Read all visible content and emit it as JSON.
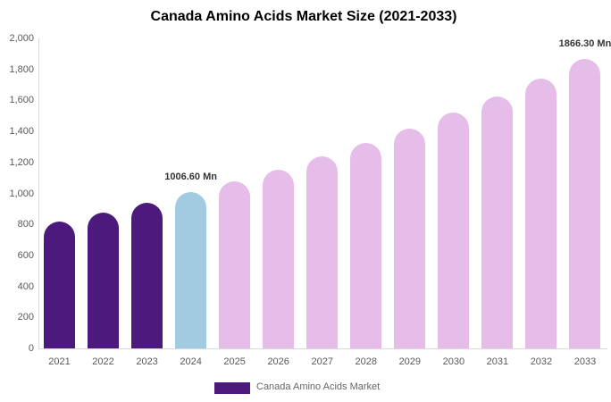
{
  "chart_data": {
    "type": "bar",
    "title": "Canada Amino Acids Market Size (2021-2033)",
    "categories": [
      "2021",
      "2022",
      "2023",
      "2024",
      "2025",
      "2026",
      "2027",
      "2028",
      "2029",
      "2030",
      "2031",
      "2032",
      "2033"
    ],
    "series": [
      {
        "name": "Canada Amino Acids Market",
        "values": [
          820,
          878,
          940,
          1006.6,
          1078,
          1155,
          1237,
          1324,
          1418,
          1519,
          1627,
          1743,
          1866.3
        ]
      }
    ],
    "xlabel": "",
    "ylabel": "",
    "ylim": [
      0,
      2000
    ],
    "ytick_interval": 200,
    "ytick_labels": [
      "0",
      "200",
      "400",
      "600",
      "800",
      "1,000",
      "1,200",
      "1,400",
      "1,600",
      "1,800",
      "2,000"
    ],
    "grid": false,
    "legend_position": "bottom",
    "bar_colors": [
      "#4B1A7C",
      "#4B1A7C",
      "#4B1A7C",
      "#A2CBE2",
      "#E6BCE8",
      "#E6BCE8",
      "#E6BCE8",
      "#E6BCE8",
      "#E6BCE8",
      "#E6BCE8",
      "#E6BCE8",
      "#E6BCE8",
      "#E6BCE8"
    ],
    "annotations": [
      {
        "category": "2024",
        "text": "1006.60 Mn"
      },
      {
        "category": "2033",
        "text": "1866.30 Mn"
      }
    ]
  },
  "legend": {
    "label": "Canada Amino Acids Market",
    "swatch_color": "#4B1A7C"
  },
  "colors": {
    "historical_bar": "#4B1A7C",
    "base_year_bar": "#A2CBE2",
    "forecast_bar": "#E6BCE8",
    "axis_line": "#d9d9d9",
    "tick_text": "#595959",
    "annotation_text": "#333333",
    "title_text": "#000000"
  }
}
